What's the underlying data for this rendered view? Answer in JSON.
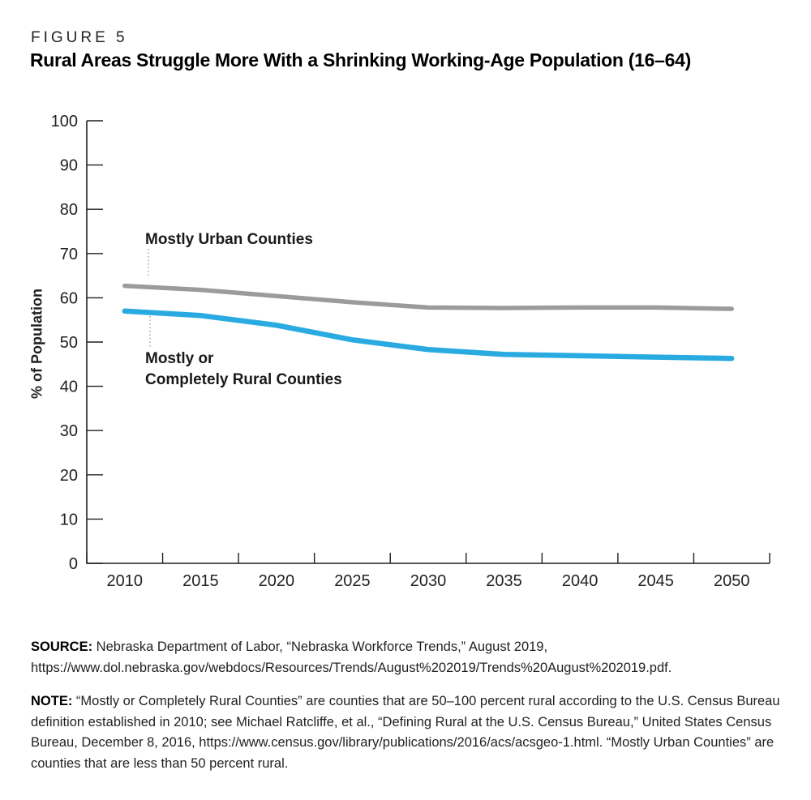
{
  "header": {
    "figure_label": "FIGURE 5",
    "title": "Rural Areas Struggle More With a Shrinking Working-Age Population (16–64)"
  },
  "chart_data": {
    "type": "line",
    "title": "Rural Areas Struggle More With a Shrinking Working-Age Population (16–64)",
    "categories": [
      "2010",
      "2015",
      "2020",
      "2025",
      "2030",
      "2035",
      "2040",
      "2045",
      "2050"
    ],
    "series": [
      {
        "name": "Mostly Urban Counties",
        "color": "#9B9B9B",
        "values": [
          62.7,
          61.8,
          60.4,
          59.0,
          57.8,
          57.7,
          57.8,
          57.8,
          57.5
        ]
      },
      {
        "name": "Mostly or Completely Rural Counties",
        "color": "#29ABE2",
        "values": [
          57.0,
          56.0,
          53.8,
          50.5,
          48.3,
          47.2,
          46.9,
          46.6,
          46.3
        ]
      }
    ],
    "xlabel": "",
    "ylabel": "% of Population",
    "ylim": [
      0,
      100
    ],
    "ytick_step": 10,
    "yticks": [
      0,
      10,
      20,
      30,
      40,
      50,
      60,
      70,
      80,
      90,
      100
    ],
    "grid": false,
    "legend_position": "inline-annotations"
  },
  "annotations": {
    "urban": {
      "text": "Mostly Urban Counties"
    },
    "rural": {
      "line1": "Mostly or",
      "line2": "Completely Rural Counties"
    }
  },
  "footer": {
    "source": {
      "label": "SOURCE:",
      "text": " Nebraska Department of Labor, “Nebraska Workforce Trends,” August 2019, https://www.dol.nebraska.gov/webdocs/Resources/Trends/August%202019/Trends%20August%202019.pdf."
    },
    "note": {
      "label": "NOTE:",
      "text": " “Mostly or Completely Rural Counties” are counties that are 50–100 percent rural according to the U.S. Census Bureau definition established in 2010; see Michael Ratcliffe, et al., “Defining Rural at the U.S. Census Bureau,” United States Census Bureau, December 8, 2016, https://www.census.gov/library/publications/2016/acs/acsgeo-1.html. “Mostly Urban Counties” are counties that are less than 50 percent rural."
    }
  },
  "colors": {
    "urban_line": "#9B9B9B",
    "rural_line": "#29ABE2",
    "axis": "#231F20",
    "text": "#231F20",
    "leader": "#939598"
  }
}
